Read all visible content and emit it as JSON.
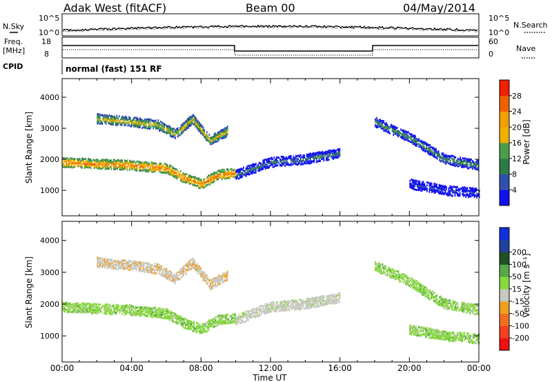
{
  "header": {
    "station": "Adak West (fitACF)",
    "beam": "Beam 00",
    "date": "04/May/2014"
  },
  "side_labels": {
    "nsky": "N.Sky",
    "freq": "Freq.",
    "freq_unit": "[MHz]",
    "cpid": "CPID",
    "nsearch": "N.Search",
    "nave": "Nave",
    "cpid_text": "normal (fast) 151 RF"
  },
  "noise_axis": {
    "left_ticks": [
      "10^5",
      "10^0"
    ],
    "right_ticks": [
      "10^5",
      "10^0"
    ]
  },
  "freq_axis": {
    "left_ticks": [
      "18",
      "8"
    ],
    "right_ticks": [
      "60",
      "0"
    ]
  },
  "colors": {
    "power_scale": [
      "#1010f0",
      "#3050b0",
      "#2c7c48",
      "#4a9e4a",
      "#f0b000",
      "#f0a000",
      "#f06000",
      "#f02000"
    ],
    "velocity_scale": [
      "#f01010",
      "#f04020",
      "#f07020",
      "#f0a020",
      "#c8c8c0",
      "#88d840",
      "#58a848",
      "#205020",
      "#2040a0",
      "#1030e0"
    ]
  },
  "chart_data": [
    {
      "type": "heatmap",
      "title": "",
      "xlabel": "Time UT",
      "ylabel": "Slant Range [km]",
      "x_ticks": [
        "00:00",
        "04:00",
        "08:00",
        "12:00",
        "16:00",
        "20:00",
        "00:00"
      ],
      "x_range_hours": [
        0,
        24
      ],
      "y_ticks": [
        1000,
        2000,
        3000,
        4000
      ],
      "ylim": [
        180,
        4600
      ],
      "colorbar": {
        "label": "Power [dB]",
        "ticks": [
          4,
          8,
          12,
          16,
          20,
          24,
          28
        ],
        "range": [
          0,
          30
        ]
      },
      "echo_bands": [
        {
          "t": [
            0,
            2,
            4,
            6,
            7,
            8,
            9,
            10
          ],
          "range_km": [
            1900,
            1850,
            1800,
            1700,
            1400,
            1200,
            1500,
            1550
          ],
          "power_db": 26
        },
        {
          "t": [
            2,
            4,
            5.5,
            6.5,
            7.5,
            8.5,
            9.5
          ],
          "range_km": [
            3300,
            3200,
            3100,
            2800,
            3300,
            2600,
            2900
          ],
          "power_db": 20
        },
        {
          "t": [
            10,
            12,
            14,
            16
          ],
          "range_km": [
            1500,
            1900,
            2000,
            2200
          ],
          "power_db": 12
        },
        {
          "t": [
            18,
            20,
            22,
            24
          ],
          "range_km": [
            3200,
            2700,
            2000,
            1800
          ],
          "power_db": 14
        },
        {
          "t": [
            20,
            22,
            24
          ],
          "range_km": [
            1200,
            1000,
            900
          ],
          "power_db": 8
        }
      ]
    },
    {
      "type": "heatmap",
      "title": "",
      "xlabel": "Time UT",
      "ylabel": "Slant Range [km]",
      "x_ticks": [
        "00:00",
        "04:00",
        "08:00",
        "12:00",
        "16:00",
        "20:00",
        "00:00"
      ],
      "x_range_hours": [
        0,
        24
      ],
      "y_ticks": [
        1000,
        2000,
        3000,
        4000
      ],
      "ylim": [
        180,
        4600
      ],
      "colorbar": {
        "label": "Velocity [m s⁻¹]",
        "ticks": [
          -200,
          -100,
          -50,
          -15,
          15,
          50,
          100,
          200
        ],
        "tick_labels": [
          "-200",
          "-100",
          "-50",
          "-15",
          "15",
          "50",
          "100",
          "200"
        ]
      },
      "echo_bands": [
        {
          "t": [
            0,
            2,
            4,
            6,
            7,
            8,
            9,
            10
          ],
          "range_km": [
            1900,
            1850,
            1800,
            1700,
            1400,
            1200,
            1500,
            1550
          ],
          "velocity": 0
        },
        {
          "t": [
            2,
            4,
            5.5,
            6.5,
            7.5,
            8.5,
            9.5
          ],
          "range_km": [
            3300,
            3200,
            3100,
            2800,
            3300,
            2600,
            2900
          ],
          "velocity": -40
        },
        {
          "t": [
            10,
            12,
            14,
            16
          ],
          "range_km": [
            1500,
            1900,
            2000,
            2200
          ],
          "velocity": -30
        },
        {
          "t": [
            18,
            20,
            22,
            24
          ],
          "range_km": [
            3200,
            2700,
            2000,
            1800
          ],
          "velocity": 0
        },
        {
          "t": [
            20,
            22,
            24
          ],
          "range_km": [
            1200,
            1000,
            900
          ],
          "velocity": 0
        }
      ]
    }
  ]
}
